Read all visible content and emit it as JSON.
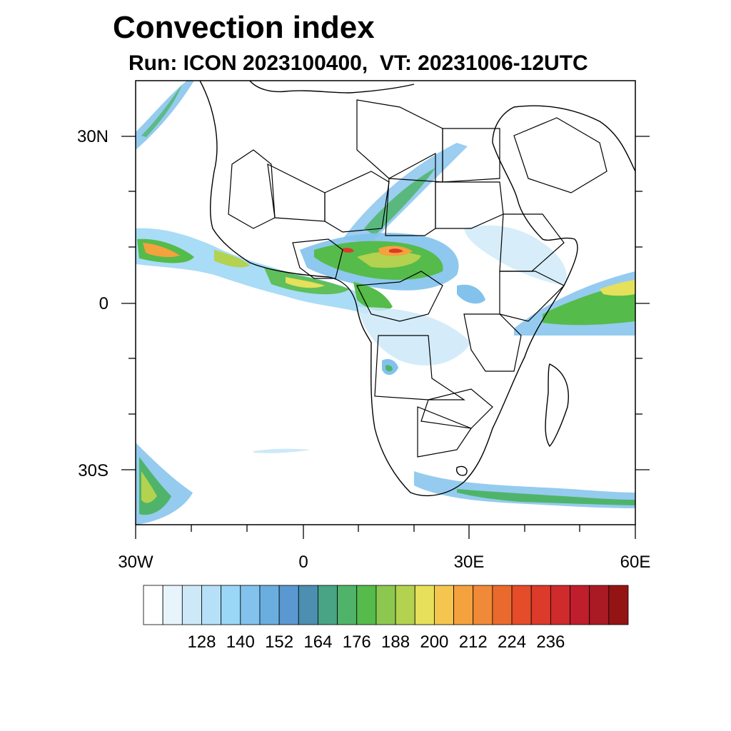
{
  "header": {
    "title": "Convection index",
    "subtitle": "Run: ICON 2023100400,  VT: 20231006-12UTC"
  },
  "map": {
    "lat_labels": [
      "30N",
      "0",
      "30S"
    ],
    "lon_labels": [
      "30W",
      "0",
      "30E",
      "60E"
    ]
  },
  "colorbar": {
    "labels": [
      "128",
      "140",
      "152",
      "164",
      "176",
      "188",
      "200",
      "212",
      "224",
      "236"
    ],
    "colors": [
      "#ffffff",
      "#e8f4fc",
      "#cde9f8",
      "#b6e0f7",
      "#9ad6f5",
      "#82c2ec",
      "#6aaee0",
      "#5a98d2",
      "#4c8fb0",
      "#48a484",
      "#4fb46a",
      "#55bb4a",
      "#8cc850",
      "#b3d24f",
      "#e6e05a",
      "#f4c650",
      "#f3a23e",
      "#f08a38",
      "#ea6a2e",
      "#e44c2a",
      "#dc3a2a",
      "#cf2a2c",
      "#bf1e2c",
      "#aa1a24",
      "#941414"
    ]
  }
}
